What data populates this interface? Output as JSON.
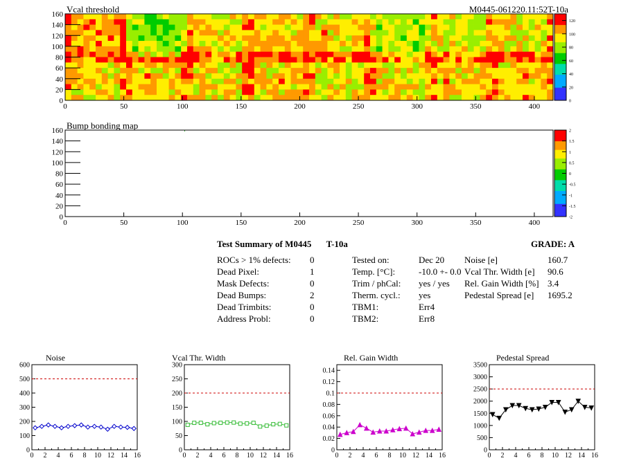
{
  "header": {
    "right_title": "M0445-061220.11:52T-10a"
  },
  "chart_data": [
    {
      "type": "heatmap",
      "title": "Vcal threshold",
      "xlim": [
        0,
        416
      ],
      "ylim": [
        0,
        160
      ],
      "x_ticks": [
        0,
        50,
        100,
        150,
        200,
        250,
        300,
        350,
        400
      ],
      "y_ticks": [
        0,
        20,
        40,
        60,
        80,
        100,
        120,
        140,
        160
      ],
      "color_scale": {
        "min": 0,
        "max": 130,
        "ticks": [
          0,
          20,
          40,
          60,
          80,
          100,
          120
        ]
      },
      "roc_mean_values": [
        105,
        80,
        95,
        100,
        100,
        85,
        90,
        95,
        95,
        100,
        95,
        100,
        95,
        95,
        100,
        100
      ],
      "grid": false
    },
    {
      "type": "heatmap",
      "title": "Bump bonding map",
      "xlim": [
        0,
        416
      ],
      "ylim": [
        0,
        160
      ],
      "x_ticks": [
        0,
        50,
        100,
        150,
        200,
        250,
        300,
        350,
        400
      ],
      "y_ticks": [
        0,
        20,
        40,
        60,
        80,
        100,
        120,
        140,
        160
      ],
      "color_scale": {
        "min": -2,
        "max": 2,
        "ticks": [
          -2,
          -1.5,
          -1,
          -0.5,
          0,
          0.5,
          1,
          1.5,
          2
        ]
      },
      "grid": false
    },
    {
      "type": "line",
      "title": "Noise",
      "x": [
        0.5,
        1.5,
        2.5,
        3.5,
        4.5,
        5.5,
        6.5,
        7.5,
        8.5,
        9.5,
        10.5,
        11.5,
        12.5,
        13.5,
        14.5,
        15.5
      ],
      "values": [
        155,
        165,
        175,
        165,
        155,
        165,
        170,
        175,
        160,
        165,
        160,
        145,
        165,
        160,
        158,
        150
      ],
      "xlim": [
        0,
        16
      ],
      "ylim": [
        0,
        600
      ],
      "x_ticks": [
        0,
        2,
        4,
        6,
        8,
        10,
        12,
        14,
        16
      ],
      "y_ticks": [
        0,
        100,
        200,
        300,
        400,
        500,
        600
      ],
      "limit_line": 500,
      "color": "#0000cc",
      "marker": "diamond"
    },
    {
      "type": "line",
      "title": "Vcal Thr. Width",
      "x": [
        0.5,
        1.5,
        2.5,
        3.5,
        4.5,
        5.5,
        6.5,
        7.5,
        8.5,
        9.5,
        10.5,
        11.5,
        12.5,
        13.5,
        14.5,
        15.5
      ],
      "values": [
        88,
        95,
        95,
        90,
        94,
        95,
        96,
        96,
        92,
        93,
        95,
        82,
        85,
        90,
        91,
        86
      ],
      "xlim": [
        0,
        16
      ],
      "ylim": [
        0,
        300
      ],
      "x_ticks": [
        0,
        2,
        4,
        6,
        8,
        10,
        12,
        14,
        16
      ],
      "y_ticks": [
        0,
        50,
        100,
        150,
        200,
        250,
        300
      ],
      "limit_line": 200,
      "color": "#33bb33",
      "marker": "square"
    },
    {
      "type": "line",
      "title": "Rel. Gain Width",
      "x": [
        0.5,
        1.5,
        2.5,
        3.5,
        4.5,
        5.5,
        6.5,
        7.5,
        8.5,
        9.5,
        10.5,
        11.5,
        12.5,
        13.5,
        14.5,
        15.5
      ],
      "values": [
        0.027,
        0.03,
        0.032,
        0.044,
        0.038,
        0.031,
        0.033,
        0.033,
        0.035,
        0.037,
        0.038,
        0.028,
        0.031,
        0.034,
        0.034,
        0.036
      ],
      "xlim": [
        0,
        16
      ],
      "ylim": [
        0,
        0.15
      ],
      "x_ticks": [
        0,
        2,
        4,
        6,
        8,
        10,
        12,
        14,
        16
      ],
      "y_ticks": [
        0,
        0.02,
        0.04,
        0.06,
        0.08,
        0.1,
        0.12,
        0.14
      ],
      "limit_line": 0.1,
      "color": "#cc00cc",
      "marker": "triangle"
    },
    {
      "type": "line",
      "title": "Pedestal Spread",
      "x": [
        0.5,
        1.5,
        2.5,
        3.5,
        4.5,
        5.5,
        6.5,
        7.5,
        8.5,
        9.5,
        10.5,
        11.5,
        12.5,
        13.5,
        14.5,
        15.5
      ],
      "values": [
        1450,
        1300,
        1650,
        1820,
        1820,
        1700,
        1650,
        1680,
        1750,
        1950,
        1950,
        1550,
        1650,
        2000,
        1750,
        1720
      ],
      "xlim": [
        0,
        16
      ],
      "ylim": [
        0,
        3500
      ],
      "x_ticks": [
        0,
        2,
        4,
        6,
        8,
        10,
        12,
        14,
        16
      ],
      "y_ticks": [
        0,
        500,
        1000,
        1500,
        2000,
        2500,
        3000,
        3500
      ],
      "limit_line": 2500,
      "color": "#000000",
      "marker": "triangle-down"
    }
  ],
  "summary": {
    "title": "Test Summary of M0445",
    "temp_label": "T-10a",
    "grade": "GRADE:  A",
    "col1": [
      {
        "label": "ROCs > 1% defects:",
        "value": "0"
      },
      {
        "label": "Dead Pixel:",
        "value": "1"
      },
      {
        "label": "Mask Defects:",
        "value": "0"
      },
      {
        "label": "Dead Bumps:",
        "value": "2"
      },
      {
        "label": "Dead Trimbits:",
        "value": "0"
      },
      {
        "label": "Address Probl:",
        "value": "0"
      }
    ],
    "col2": [
      {
        "label": "Tested on:",
        "value": "Dec 20"
      },
      {
        "label": "Temp. [°C]:",
        "value": "-10.0 +- 0.0"
      },
      {
        "label": "Trim / phCal:",
        "value": "yes / yes"
      },
      {
        "label": "Therm. cycl.:",
        "value": "yes"
      },
      {
        "label": "TBM1:",
        "value": "Err4"
      },
      {
        "label": "TBM2:",
        "value": "Err8"
      }
    ],
    "col3": [
      {
        "label": "Noise [e]",
        "value": "160.7"
      },
      {
        "label": "Vcal Thr. Width [e]",
        "value": "90.6"
      },
      {
        "label": "Rel. Gain Width [%]",
        "value": "3.4"
      },
      {
        "label": "Pedestal Spread [e]",
        "value": "1695.2"
      }
    ]
  },
  "colors": {
    "limit_line": "#cc0000"
  }
}
